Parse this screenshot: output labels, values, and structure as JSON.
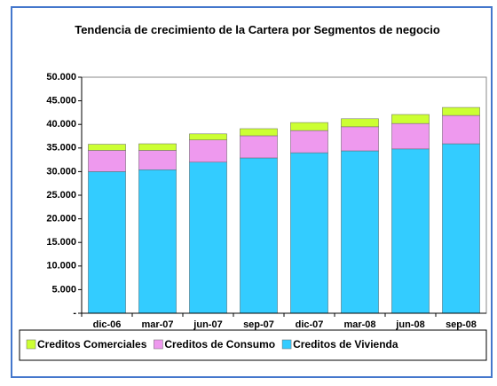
{
  "chart_data": {
    "type": "stacked_bar",
    "title": "Tendencia de crecimiento de la Cartera por Segmentos de negocio",
    "categories": [
      "dic-06",
      "mar-07",
      "jun-07",
      "sep-07",
      "dic-07",
      "mar-08",
      "jun-08",
      "sep-08"
    ],
    "series": [
      {
        "name": "Creditos de Vivienda",
        "color": "#33ccff",
        "values": [
          30000,
          30400,
          32000,
          32900,
          34000,
          34400,
          34800,
          35900
        ]
      },
      {
        "name": "Creditos de Consumo",
        "color": "#ee99ee",
        "values": [
          4500,
          4100,
          4700,
          4700,
          4700,
          5100,
          5400,
          6000
        ]
      },
      {
        "name": "Creditos Comerciales",
        "color": "#ccff33",
        "values": [
          1300,
          1400,
          1300,
          1500,
          1700,
          1700,
          1900,
          1700
        ]
      }
    ],
    "legend_order": [
      2,
      1,
      0
    ],
    "ylim": [
      0,
      50000
    ],
    "yticks": [
      {
        "value": 0,
        "label": "-"
      },
      {
        "value": 5000,
        "label": "5.000"
      },
      {
        "value": 10000,
        "label": "10.000"
      },
      {
        "value": 15000,
        "label": "15.000"
      },
      {
        "value": 20000,
        "label": "20.000"
      },
      {
        "value": 25000,
        "label": "25.000"
      },
      {
        "value": 30000,
        "label": "30.000"
      },
      {
        "value": 35000,
        "label": "35.000"
      },
      {
        "value": 40000,
        "label": "40.000"
      },
      {
        "value": 45000,
        "label": "45.000"
      },
      {
        "value": 50000,
        "label": "50.000"
      }
    ],
    "grid": false,
    "legend": "bottom"
  }
}
